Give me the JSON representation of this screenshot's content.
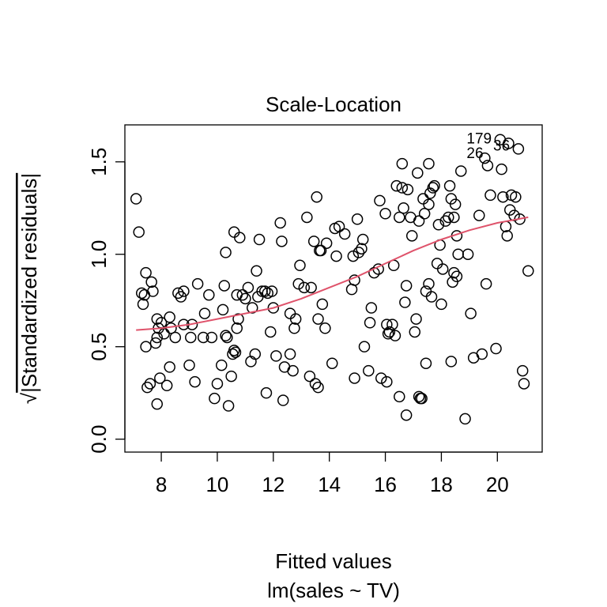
{
  "chart_data": {
    "type": "scatter",
    "title": "Scale-Location",
    "xlabel": "Fitted values",
    "subtitle": "lm(sales ~ TV)",
    "ylabel_sqrt": "√",
    "ylabel": "|Standardized residuals|",
    "xlim": [
      6.7,
      21.6
    ],
    "ylim": [
      -0.07,
      1.7
    ],
    "xticks": [
      8,
      10,
      12,
      14,
      16,
      18,
      20
    ],
    "yticks": [
      0.0,
      0.5,
      1.0,
      1.5
    ],
    "xtick_labels": [
      "8",
      "10",
      "12",
      "14",
      "16",
      "18",
      "20"
    ],
    "ytick_labels": [
      "0.0",
      "0.5",
      "1.0",
      "1.5"
    ],
    "point_labels": [
      {
        "label": "179",
        "x": 19.35,
        "y": 1.6
      },
      {
        "label": "36",
        "x": 20.15,
        "y": 1.56
      },
      {
        "label": "26",
        "x": 19.2,
        "y": 1.52
      }
    ],
    "colors": {
      "points": "#000000",
      "smooth": "#DF536B",
      "axis": "#000000"
    },
    "points": [
      [
        7.1,
        1.3
      ],
      [
        7.2,
        1.12
      ],
      [
        7.3,
        0.79
      ],
      [
        7.35,
        0.73
      ],
      [
        7.45,
        0.9
      ],
      [
        7.4,
        0.78
      ],
      [
        7.45,
        0.5
      ],
      [
        7.5,
        0.28
      ],
      [
        7.6,
        0.3
      ],
      [
        7.65,
        0.85
      ],
      [
        7.7,
        0.8
      ],
      [
        7.8,
        0.52
      ],
      [
        7.85,
        0.65
      ],
      [
        7.9,
        0.6
      ],
      [
        7.85,
        0.19
      ],
      [
        7.95,
        0.33
      ],
      [
        7.85,
        0.55
      ],
      [
        8.0,
        0.63
      ],
      [
        8.1,
        0.57
      ],
      [
        8.2,
        0.29
      ],
      [
        8.3,
        0.66
      ],
      [
        8.3,
        0.39
      ],
      [
        8.35,
        0.6
      ],
      [
        8.5,
        0.55
      ],
      [
        8.6,
        0.79
      ],
      [
        8.7,
        0.77
      ],
      [
        8.8,
        0.8
      ],
      [
        8.8,
        0.62
      ],
      [
        9.0,
        0.4
      ],
      [
        9.05,
        0.55
      ],
      [
        9.1,
        0.62
      ],
      [
        9.2,
        0.31
      ],
      [
        9.3,
        0.84
      ],
      [
        9.5,
        0.55
      ],
      [
        9.55,
        0.68
      ],
      [
        9.7,
        0.78
      ],
      [
        9.8,
        0.55
      ],
      [
        9.9,
        0.22
      ],
      [
        10.0,
        0.3
      ],
      [
        10.15,
        0.4
      ],
      [
        10.2,
        0.7
      ],
      [
        10.25,
        0.83
      ],
      [
        10.3,
        1.01
      ],
      [
        10.3,
        0.56
      ],
      [
        10.35,
        0.55
      ],
      [
        10.4,
        0.18
      ],
      [
        10.5,
        0.34
      ],
      [
        10.55,
        0.46
      ],
      [
        10.6,
        1.12
      ],
      [
        10.6,
        0.48
      ],
      [
        10.65,
        0.47
      ],
      [
        10.7,
        0.78
      ],
      [
        10.7,
        0.6
      ],
      [
        10.75,
        0.65
      ],
      [
        10.8,
        1.09
      ],
      [
        10.9,
        0.78
      ],
      [
        11.0,
        0.76
      ],
      [
        11.1,
        0.82
      ],
      [
        11.2,
        0.42
      ],
      [
        11.25,
        0.71
      ],
      [
        11.35,
        0.46
      ],
      [
        11.4,
        0.91
      ],
      [
        11.45,
        0.77
      ],
      [
        11.5,
        1.08
      ],
      [
        11.6,
        0.8
      ],
      [
        11.7,
        0.8
      ],
      [
        11.75,
        0.25
      ],
      [
        11.8,
        0.79
      ],
      [
        11.9,
        0.58
      ],
      [
        11.95,
        0.8
      ],
      [
        12.0,
        0.71
      ],
      [
        12.1,
        0.45
      ],
      [
        12.25,
        1.17
      ],
      [
        12.3,
        1.07
      ],
      [
        12.35,
        0.21
      ],
      [
        12.4,
        0.39
      ],
      [
        12.6,
        0.68
      ],
      [
        12.6,
        0.46
      ],
      [
        12.7,
        0.37
      ],
      [
        12.75,
        0.6
      ],
      [
        12.8,
        0.65
      ],
      [
        12.9,
        0.84
      ],
      [
        12.95,
        0.94
      ],
      [
        13.1,
        0.82
      ],
      [
        13.2,
        1.2
      ],
      [
        13.3,
        0.34
      ],
      [
        13.35,
        0.82
      ],
      [
        13.45,
        1.07
      ],
      [
        13.5,
        0.3
      ],
      [
        13.55,
        1.31
      ],
      [
        13.6,
        0.65
      ],
      [
        13.6,
        0.28
      ],
      [
        13.65,
        1.02
      ],
      [
        13.7,
        1.02
      ],
      [
        13.75,
        0.73
      ],
      [
        13.85,
        0.6
      ],
      [
        13.9,
        1.06
      ],
      [
        14.1,
        0.41
      ],
      [
        14.2,
        1.14
      ],
      [
        14.25,
        0.99
      ],
      [
        14.35,
        1.15
      ],
      [
        14.55,
        1.11
      ],
      [
        14.8,
        0.81
      ],
      [
        14.85,
        0.99
      ],
      [
        14.9,
        0.86
      ],
      [
        14.9,
        0.33
      ],
      [
        15.0,
        1.19
      ],
      [
        15.05,
        1.01
      ],
      [
        15.15,
        1.03
      ],
      [
        15.2,
        1.08
      ],
      [
        15.25,
        0.5
      ],
      [
        15.4,
        0.37
      ],
      [
        15.45,
        0.63
      ],
      [
        15.5,
        0.71
      ],
      [
        15.6,
        0.9
      ],
      [
        15.75,
        0.92
      ],
      [
        15.8,
        1.29
      ],
      [
        15.85,
        0.33
      ],
      [
        16.0,
        1.22
      ],
      [
        16.05,
        0.62
      ],
      [
        16.05,
        0.31
      ],
      [
        16.1,
        0.57
      ],
      [
        16.15,
        0.58
      ],
      [
        16.25,
        0.62
      ],
      [
        16.3,
        0.94
      ],
      [
        16.35,
        0.56
      ],
      [
        16.4,
        1.37
      ],
      [
        16.5,
        1.2
      ],
      [
        16.5,
        0.23
      ],
      [
        16.6,
        1.49
      ],
      [
        16.6,
        1.36
      ],
      [
        16.65,
        1.25
      ],
      [
        16.7,
        0.74
      ],
      [
        16.75,
        0.83
      ],
      [
        16.75,
        0.13
      ],
      [
        16.8,
        1.35
      ],
      [
        16.9,
        1.2
      ],
      [
        16.95,
        1.1
      ],
      [
        17.05,
        0.58
      ],
      [
        17.1,
        0.65
      ],
      [
        17.15,
        1.44
      ],
      [
        17.2,
        1.18
      ],
      [
        17.2,
        0.23
      ],
      [
        17.25,
        0.22
      ],
      [
        17.3,
        0.22
      ],
      [
        17.35,
        1.3
      ],
      [
        17.4,
        1.22
      ],
      [
        17.45,
        0.41
      ],
      [
        17.45,
        0.8
      ],
      [
        17.55,
        1.27
      ],
      [
        17.55,
        1.49
      ],
      [
        17.55,
        0.84
      ],
      [
        17.6,
        1.33
      ],
      [
        17.65,
        0.77
      ],
      [
        17.7,
        1.36
      ],
      [
        17.75,
        1.37
      ],
      [
        17.85,
        0.95
      ],
      [
        17.9,
        1.16
      ],
      [
        17.95,
        1.05
      ],
      [
        18.0,
        0.73
      ],
      [
        18.05,
        0.92
      ],
      [
        18.15,
        1.18
      ],
      [
        18.25,
        1.2
      ],
      [
        18.3,
        1.37
      ],
      [
        18.35,
        1.3
      ],
      [
        18.35,
        0.42
      ],
      [
        18.4,
        0.85
      ],
      [
        18.45,
        0.9
      ],
      [
        18.45,
        1.2
      ],
      [
        18.5,
        1.27
      ],
      [
        18.55,
        0.88
      ],
      [
        18.55,
        1.1
      ],
      [
        18.6,
        1.0
      ],
      [
        18.7,
        1.45
      ],
      [
        18.85,
        0.11
      ],
      [
        18.95,
        1.0
      ],
      [
        19.05,
        0.68
      ],
      [
        19.15,
        0.44
      ],
      [
        19.35,
        1.21
      ],
      [
        19.45,
        0.46
      ],
      [
        19.55,
        1.52
      ],
      [
        19.6,
        0.84
      ],
      [
        19.65,
        1.48
      ],
      [
        19.75,
        1.32
      ],
      [
        19.95,
        0.49
      ],
      [
        20.1,
        1.62
      ],
      [
        20.15,
        1.46
      ],
      [
        20.2,
        1.31
      ],
      [
        20.3,
        1.15
      ],
      [
        20.35,
        1.1
      ],
      [
        20.4,
        1.6
      ],
      [
        20.45,
        1.24
      ],
      [
        20.5,
        1.32
      ],
      [
        20.6,
        1.21
      ],
      [
        20.65,
        1.31
      ],
      [
        20.75,
        1.57
      ],
      [
        20.8,
        1.19
      ],
      [
        20.9,
        0.37
      ],
      [
        20.95,
        0.3
      ],
      [
        21.1,
        0.91
      ]
    ],
    "smooth": [
      [
        7.1,
        0.59
      ],
      [
        8.0,
        0.6
      ],
      [
        9.0,
        0.62
      ],
      [
        10.0,
        0.65
      ],
      [
        11.0,
        0.68
      ],
      [
        12.0,
        0.71
      ],
      [
        13.0,
        0.76
      ],
      [
        14.0,
        0.82
      ],
      [
        15.0,
        0.88
      ],
      [
        16.0,
        0.95
      ],
      [
        17.0,
        1.02
      ],
      [
        18.0,
        1.08
      ],
      [
        19.0,
        1.13
      ],
      [
        20.0,
        1.17
      ],
      [
        21.1,
        1.2
      ]
    ]
  }
}
